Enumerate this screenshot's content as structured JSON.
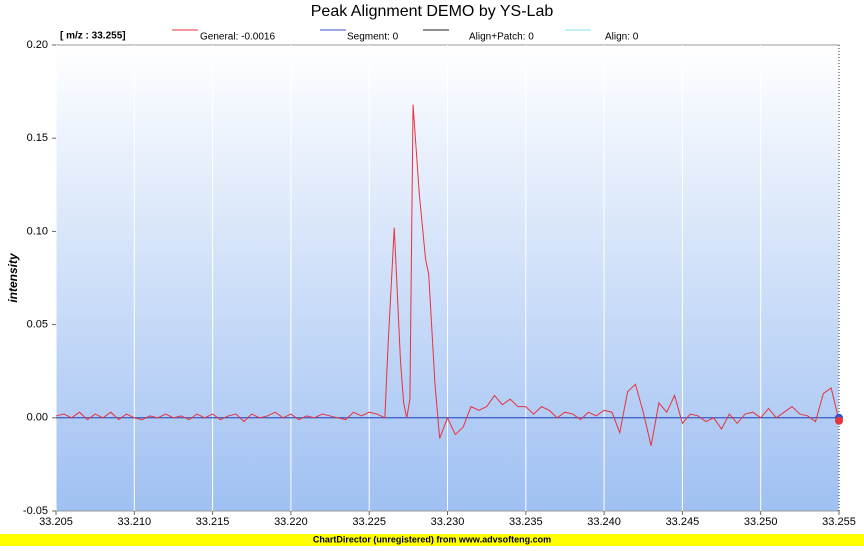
{
  "chart_data": {
    "type": "line",
    "title": "Peak Alignment DEMO by YS-Lab",
    "cursor_label": "[ m/z : 33.255]",
    "y_label": "intensity",
    "footer": "ChartDirector (unregistered) from www.advsofteng.com",
    "xlim": [
      33.205,
      33.255
    ],
    "xticks": [
      33.205,
      {
        "value": 33.21,
        "label": "33.210"
      },
      33.215,
      {
        "value": 33.22,
        "label": "33.220"
      },
      33.225,
      {
        "value": 33.23,
        "label": "33.230"
      },
      33.235,
      {
        "value": 33.24,
        "label": "33.240"
      },
      33.245,
      {
        "value": 33.25,
        "label": "33.250"
      },
      33.255
    ],
    "ylim": [
      -0.05,
      0.2
    ],
    "yticks": [
      {
        "value": 0.2,
        "label": "0.20"
      },
      0.15,
      {
        "value": 0.1,
        "label": "0.10"
      },
      0.05,
      {
        "value": 0,
        "label": "0.00"
      },
      -0.05
    ],
    "grid": true,
    "series": [
      {
        "name": "General: -0.0016",
        "color": "#e8323c",
        "x": [
          33.205,
          33.2055,
          33.206,
          33.2065,
          33.207,
          33.2075,
          33.208,
          33.2085,
          33.209,
          33.2095,
          33.21,
          33.2105,
          33.211,
          33.2115,
          33.212,
          33.2125,
          33.213,
          33.2135,
          33.214,
          33.2145,
          33.215,
          33.2155,
          33.216,
          33.2165,
          33.217,
          33.2175,
          33.218,
          33.2185,
          33.219,
          33.2195,
          33.22,
          33.2205,
          33.221,
          33.2215,
          33.222,
          33.2225,
          33.223,
          33.2235,
          33.224,
          33.2245,
          33.225,
          33.2255,
          33.226,
          33.2262,
          33.2266,
          33.227,
          33.2272,
          33.2274,
          33.2276,
          33.2278,
          33.2282,
          33.2286,
          33.2288,
          33.2292,
          33.2295,
          33.23,
          33.2305,
          33.231,
          33.2315,
          33.232,
          33.2325,
          33.233,
          33.2335,
          33.234,
          33.2345,
          33.235,
          33.2355,
          33.236,
          33.2365,
          33.237,
          33.2375,
          33.238,
          33.2385,
          33.239,
          33.2395,
          33.24,
          33.2405,
          33.241,
          33.2415,
          33.242,
          33.2425,
          33.243,
          33.2435,
          33.244,
          33.2445,
          33.245,
          33.2455,
          33.246,
          33.2465,
          33.247,
          33.2475,
          33.248,
          33.2485,
          33.249,
          33.2495,
          33.25,
          33.2505,
          33.251,
          33.2515,
          33.252,
          33.2525,
          33.253,
          33.2535,
          33.254,
          33.2545,
          33.255
        ],
        "values": [
          0.001,
          0.002,
          0.0,
          0.003,
          -0.001,
          0.002,
          0.0,
          0.003,
          -0.001,
          0.002,
          0.0,
          -0.001,
          0.001,
          0.0,
          0.002,
          0.0,
          0.001,
          -0.001,
          0.002,
          0.0,
          0.002,
          -0.001,
          0.001,
          0.002,
          -0.002,
          0.002,
          0.0,
          0.001,
          0.003,
          0.0,
          0.002,
          -0.001,
          0.001,
          0.0,
          0.002,
          0.001,
          0.0,
          -0.001,
          0.003,
          0.001,
          0.003,
          0.002,
          0.0,
          0.038,
          0.102,
          0.03,
          0.008,
          0.0,
          0.01,
          0.168,
          0.12,
          0.085,
          0.077,
          0.018,
          -0.011,
          0.0,
          -0.009,
          -0.005,
          0.006,
          0.004,
          0.006,
          0.012,
          0.007,
          0.01,
          0.006,
          0.006,
          0.002,
          0.006,
          0.004,
          0.0,
          0.003,
          0.002,
          -0.001,
          0.003,
          0.001,
          0.004,
          0.003,
          -0.008,
          0.014,
          0.018,
          0.003,
          -0.015,
          0.008,
          0.003,
          0.012,
          -0.003,
          0.002,
          0.001,
          -0.002,
          0.0,
          -0.006,
          0.002,
          -0.003,
          0.002,
          0.003,
          0.0,
          0.005,
          0.0,
          0.003,
          0.006,
          0.002,
          0.001,
          -0.002,
          0.013,
          0.016,
          -0.0016
        ]
      },
      {
        "name": "Segment: 0",
        "color": "#3a4fd0",
        "x": [
          33.205,
          33.255
        ],
        "values": [
          0,
          0
        ]
      },
      {
        "name": "Align+Patch: 0",
        "color": "#222222",
        "x": [
          33.205,
          33.255
        ],
        "values": [
          0,
          0
        ]
      },
      {
        "name": "Align: 0",
        "color": "#7fe6f0",
        "x": [
          33.205,
          33.255
        ],
        "values": [
          0,
          0
        ]
      }
    ]
  }
}
